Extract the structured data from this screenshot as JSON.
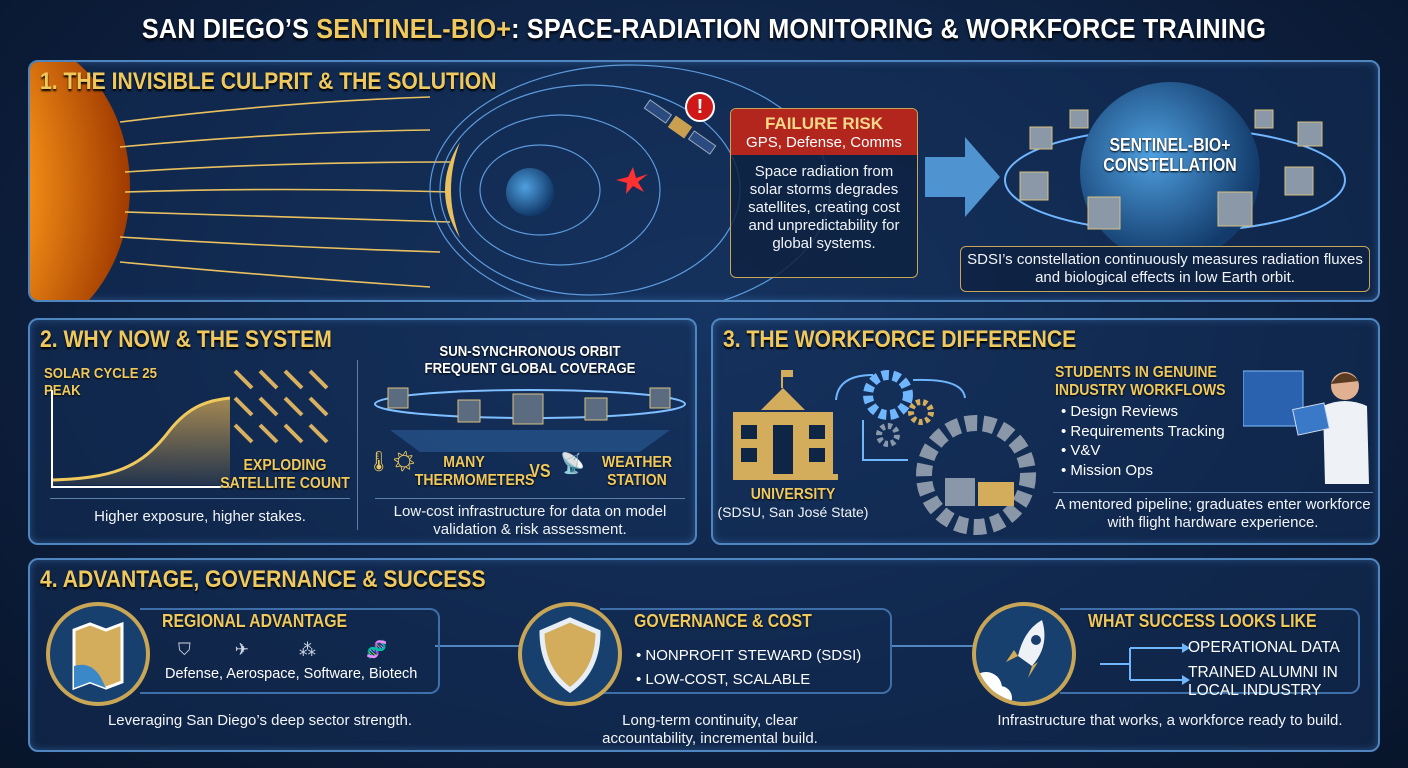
{
  "title": {
    "part1": "SAN DIEGO’S ",
    "highlight": "SENTINEL-BIO+",
    "part2": ": SPACE-RADIATION MONITORING & WORKFORCE TRAINING"
  },
  "colors": {
    "gold": "#f0c95e",
    "background": "#0c1d3a",
    "panel_border": "#4f86c0",
    "risk_red": "#b3261e"
  },
  "section1": {
    "heading": "1. THE INVISIBLE CULPRIT & THE SOLUTION",
    "risk": {
      "title": "FAILURE RISK",
      "subtitle": "GPS, Defense, Comms",
      "body": "Space radiation from solar storms degrades satellites, creating cost and unpredictability for global systems."
    },
    "alert_icon": "exclamation-icon",
    "constellation_label": "SENTINEL-BIO+ CONSTELLATION",
    "constellation_caption": "SDSI’s constellation continuously measures radiation fluxes and biological effects in low Earth orbit."
  },
  "section2": {
    "heading": "2. WHY NOW & THE SYSTEM",
    "solar_label": "SOLAR CYCLE 25 PEAK",
    "satellite_label": "EXPLODING SATELLITE COUNT",
    "left_caption": "Higher exposure, higher stakes.",
    "orbit_label": "SUN-SYNCHRONOUS ORBIT FREQUENT GLOBAL COVERAGE",
    "many": "MANY THERMOMETERS",
    "vs": "VS",
    "weather": "WEATHER STATION",
    "right_caption": "Low-cost infrastructure for data on model validation & risk assessment."
  },
  "section3": {
    "heading": "3. THE WORKFORCE DIFFERENCE",
    "university": "UNIVERSITY",
    "university_sub": "(SDSU, San José State)",
    "students_heading": "STUDENTS IN GENUINE INDUSTRY WORKFLOWS",
    "bullets": [
      "Design Reviews",
      "Requirements Tracking",
      "V&V",
      "Mission Ops"
    ],
    "caption": "A mentored pipeline; graduates enter workforce with flight hardware experience."
  },
  "section4": {
    "heading": "4. ADVANTAGE, GOVERNANCE & SUCCESS",
    "regional": {
      "title": "REGIONAL ADVANTAGE",
      "sectors": [
        "Defense,",
        "Aerospace,",
        "Software,",
        "Biotech"
      ],
      "caption": "Leveraging San Diego’s deep sector strength."
    },
    "governance": {
      "title": "GOVERNANCE & COST",
      "bullets": [
        "NONPROFIT STEWARD (SDSI)",
        "LOW-COST, SCALABLE"
      ],
      "caption": "Long-term continuity, clear accountability, incremental build."
    },
    "success": {
      "title": "WHAT SUCCESS LOOKS LIKE",
      "outcomes": [
        "OPERATIONAL DATA",
        "TRAINED ALUMNI IN LOCAL INDUSTRY"
      ],
      "caption": "Infrastructure that works, a workforce ready to build."
    }
  }
}
